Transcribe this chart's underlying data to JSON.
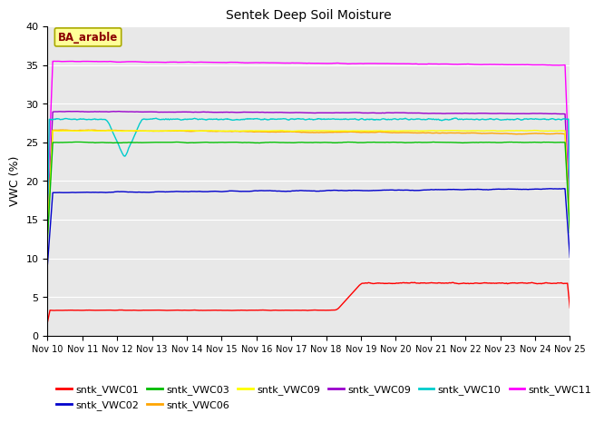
{
  "title": "Sentek Deep Soil Moisture",
  "ylabel": "VWC (%)",
  "ylim": [
    0,
    40
  ],
  "yticks": [
    0,
    5,
    10,
    15,
    20,
    25,
    30,
    35,
    40
  ],
  "xtick_labels": [
    "Nov 10",
    "Nov 11",
    "Nov 12",
    "Nov 13",
    "Nov 14",
    "Nov 15",
    "Nov 16",
    "Nov 17",
    "Nov 18",
    "Nov 19",
    "Nov 20",
    "Nov 21",
    "Nov 22",
    "Nov 23",
    "Nov 24",
    "Nov 25"
  ],
  "annotation_text": "BA_arable",
  "annotation_color": "#8B0000",
  "annotation_bg": "#FFFF99",
  "annotation_border": "#AAAA00",
  "series": {
    "sntk_VWC01": {
      "color": "#FF0000",
      "label": "sntk_VWC01"
    },
    "sntk_VWC02": {
      "color": "#0000CC",
      "label": "sntk_VWC02"
    },
    "sntk_VWC03": {
      "color": "#00BB00",
      "label": "sntk_VWC03"
    },
    "sntk_VWC06": {
      "color": "#FFA500",
      "label": "sntk_VWC06"
    },
    "sntk_VWC09y": {
      "color": "#FFFF00",
      "label": "sntk_VWC09"
    },
    "sntk_VWC09p": {
      "color": "#9900CC",
      "label": "sntk_VWC09"
    },
    "sntk_VWC10": {
      "color": "#00CCCC",
      "label": "sntk_VWC10"
    },
    "sntk_VWC11": {
      "color": "#FF00FF",
      "label": "sntk_VWC11"
    }
  },
  "background_color": "#E8E8E8",
  "grid_color": "#FFFFFF",
  "linewidth": 1.0,
  "title_fontsize": 10,
  "tick_fontsize": 8,
  "ylabel_fontsize": 9,
  "legend_fontsize": 8
}
